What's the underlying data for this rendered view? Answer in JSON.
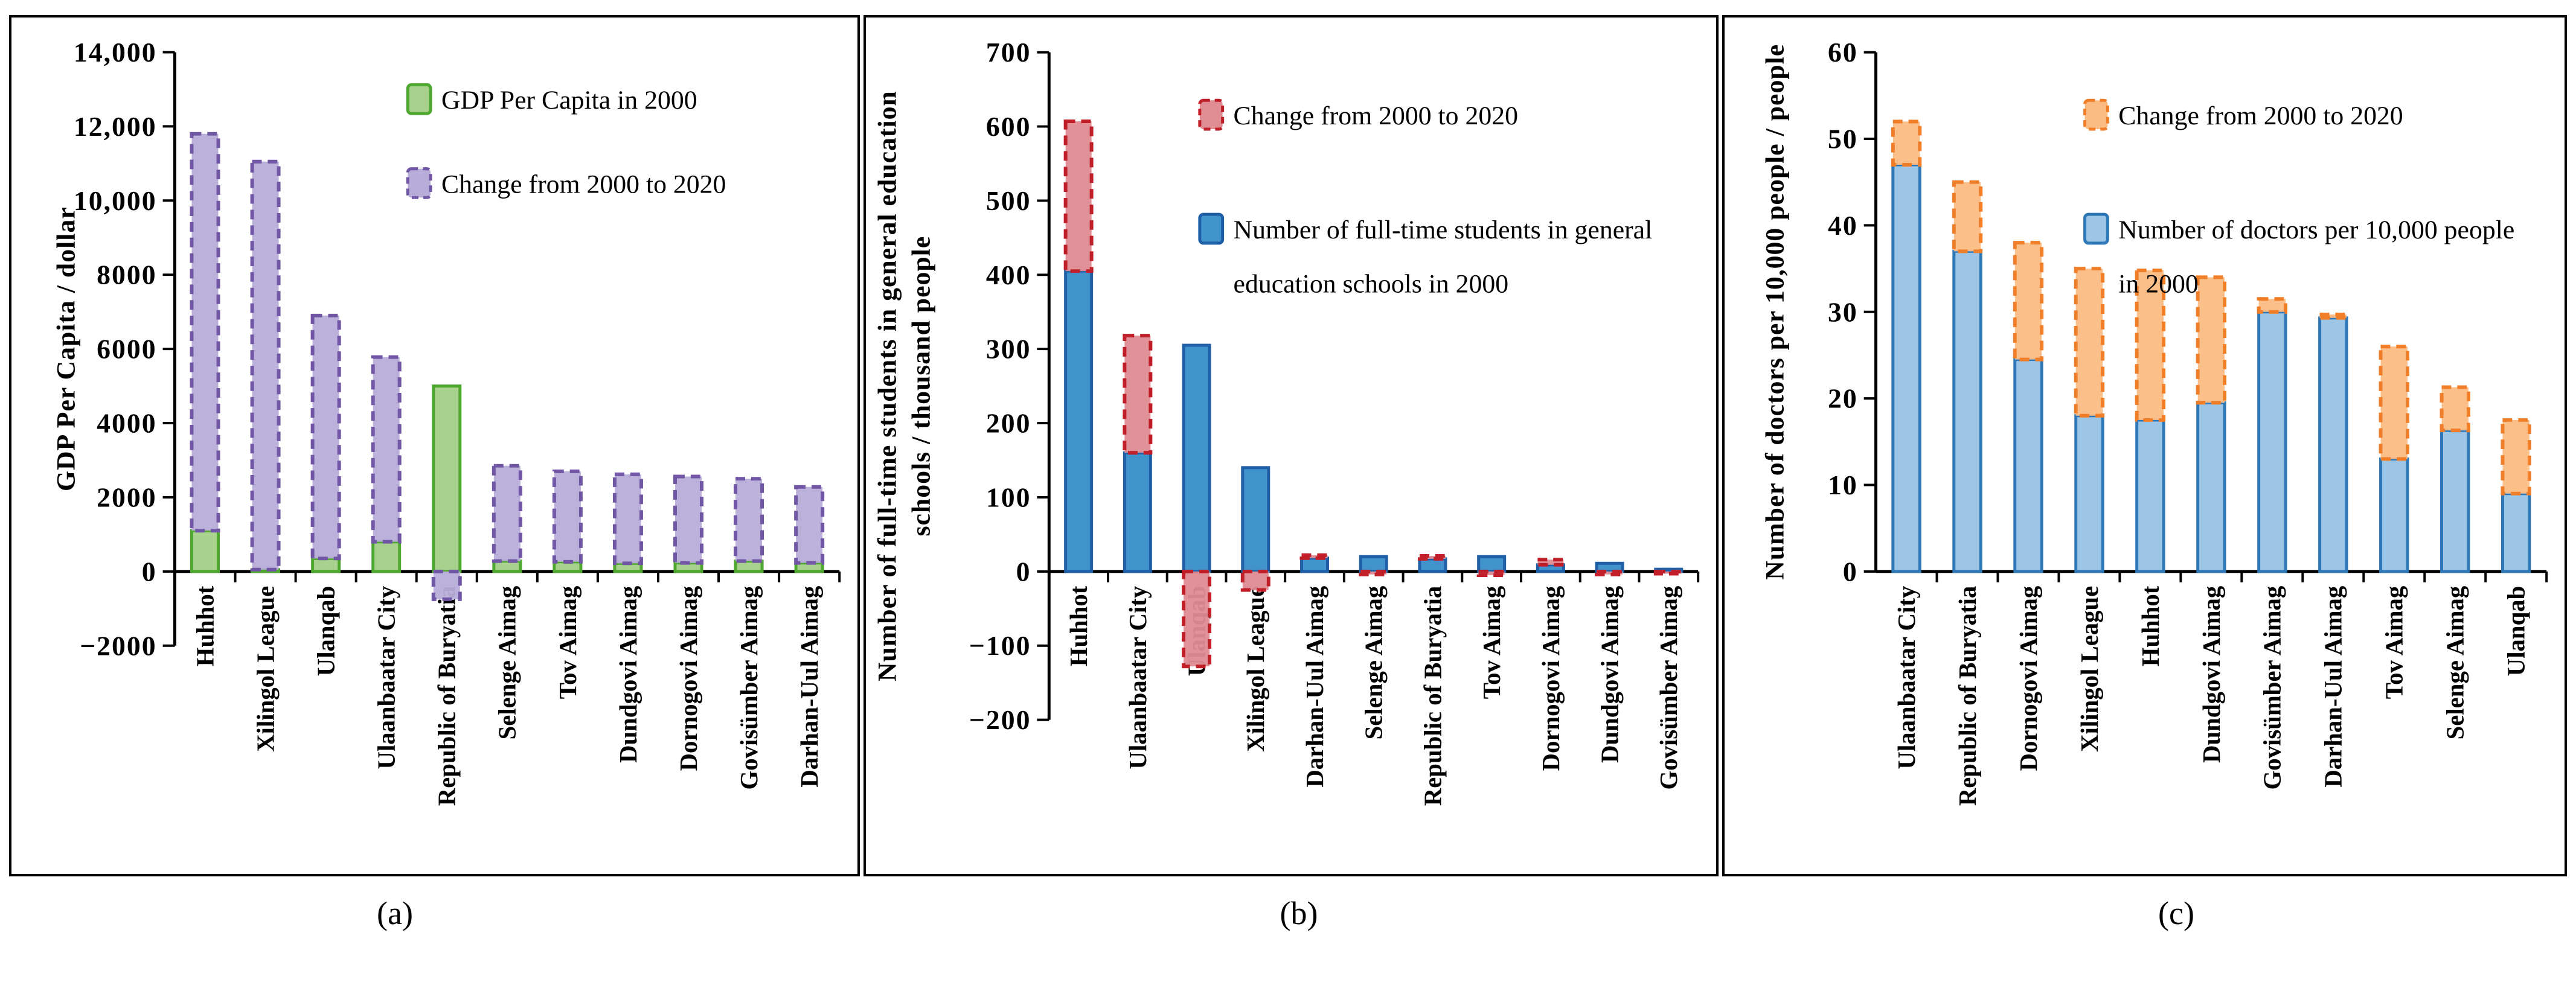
{
  "captions": {
    "a": "(a)",
    "b": "(b)",
    "c": "(c)"
  },
  "chart_data": [
    {
      "id": "a",
      "type": "stacked-bar",
      "caption": "(a)",
      "y_axis": {
        "title_lines": [
          "GDP Per Capita / dollar"
        ],
        "min": -2000,
        "max": 14000,
        "step": 2000,
        "tick_labels": [
          "14,000",
          "12,000",
          "10,000",
          "8000",
          "6000",
          "4000",
          "2000",
          "0",
          "−2000"
        ]
      },
      "categories": [
        "Huhhot",
        "Xilingol League",
        "Ulanqab",
        "Ulaanbaatar City",
        "Republic of Buryatia",
        "Selenge Aimag",
        "Tov Aimag",
        "Dundgovi Aimag",
        "Dornogovi Aimag",
        "Govisümber Aimag",
        "Darhan-Uul Aimag"
      ],
      "series": [
        {
          "name": "GDP Per Capita in 2000",
          "role": "base",
          "border_style": "solid",
          "fill": "#A9D18E",
          "stroke": "#4EA72E",
          "values": [
            1100,
            50,
            350,
            800,
            5000,
            280,
            260,
            220,
            230,
            280,
            230
          ]
        },
        {
          "name": "Change from 2000 to 2020",
          "role": "change",
          "border_style": "dashed",
          "fill": "#B7ADD8",
          "stroke": "#7056A4",
          "values": [
            10700,
            11000,
            6550,
            4980,
            -750,
            2570,
            2440,
            2400,
            2330,
            2220,
            2050
          ]
        }
      ],
      "legend": {
        "entries": [
          {
            "series": 0,
            "lines": [
              "GDP Per Capita in 2000"
            ]
          },
          {
            "series": 1,
            "lines": [
              "Change from 2000 to 2020"
            ]
          }
        ]
      }
    },
    {
      "id": "b",
      "type": "stacked-bar",
      "caption": "(b)",
      "y_axis": {
        "title_lines": [
          "Number of full-time students in general education",
          "schools / thousand people"
        ],
        "min": -200,
        "max": 700,
        "step": 100,
        "tick_labels": [
          "700",
          "600",
          "500",
          "400",
          "300",
          "200",
          "100",
          "0",
          "−100",
          "−200"
        ]
      },
      "categories": [
        "Huhhot",
        "Ulaanbaatar City",
        "Ulanqab",
        "Xilingol League",
        "Darhan-Uul Aimag",
        "Selenge Aimag",
        "Republic of Buryatia",
        "Tov Aimag",
        "Dornogovi Aimag",
        "Dundgovi Aimag",
        "Govisümber Aimag"
      ],
      "series": [
        {
          "name": "Number of full-time students in general education schools in 2000",
          "role": "base",
          "border_style": "solid",
          "fill": "#4193CC",
          "stroke": "#1F5FA8",
          "values": [
            405,
            160,
            305,
            140,
            18,
            20,
            17,
            20,
            9,
            11,
            3
          ]
        },
        {
          "name": "Change from 2000 to 2020",
          "role": "change",
          "border_style": "dashed",
          "fill": "#DF8C93",
          "stroke": "#C01E28",
          "values": [
            202,
            158,
            -128,
            -25,
            4,
            -4,
            4,
            -5,
            7,
            -4,
            -3
          ]
        }
      ],
      "legend": {
        "entries": [
          {
            "series": 1,
            "lines": [
              "Change from 2000 to 2020"
            ]
          },
          {
            "series": 0,
            "lines": [
              "Number of full-time students in general",
              "education schools in 2000"
            ]
          }
        ]
      }
    },
    {
      "id": "c",
      "type": "stacked-bar",
      "caption": "(c)",
      "y_axis": {
        "title_lines": [
          "Number of doctors per 10,000 people / people"
        ],
        "min": 0,
        "max": 60,
        "step": 10,
        "tick_labels": [
          "60",
          "50",
          "40",
          "30",
          "20",
          "10",
          "0"
        ]
      },
      "categories": [
        "Ulaanbaatar City",
        "Republic of Buryatia",
        "Dornogovi Aimag",
        "Xilingol League",
        "Huhhot",
        "Dundgovi Aimag",
        "Govisümber Aimag",
        "Darhan-Uul Aimag",
        "Tov Aimag",
        "Selenge Aimag",
        "Ulanqab"
      ],
      "series": [
        {
          "name": "Number of doctors per 10,000 people in 2000",
          "role": "base",
          "border_style": "solid",
          "fill": "#9DC6E6",
          "stroke": "#2E78B8",
          "values": [
            47,
            37,
            24.5,
            18,
            17.5,
            19.5,
            30,
            29.3,
            13,
            16.3,
            9
          ]
        },
        {
          "name": "Change from 2000 to 2020",
          "role": "change",
          "border_style": "dashed",
          "fill": "#FBBC84",
          "stroke": "#F07E28",
          "values": [
            5,
            8,
            13.5,
            17,
            17.3,
            14.5,
            1.5,
            0.4,
            13,
            5,
            8.5
          ]
        }
      ],
      "legend": {
        "entries": [
          {
            "series": 1,
            "lines": [
              "Change from 2000 to 2020"
            ]
          },
          {
            "series": 0,
            "lines": [
              "Number of doctors per 10,000 people",
              "in 2000"
            ]
          }
        ]
      }
    }
  ]
}
